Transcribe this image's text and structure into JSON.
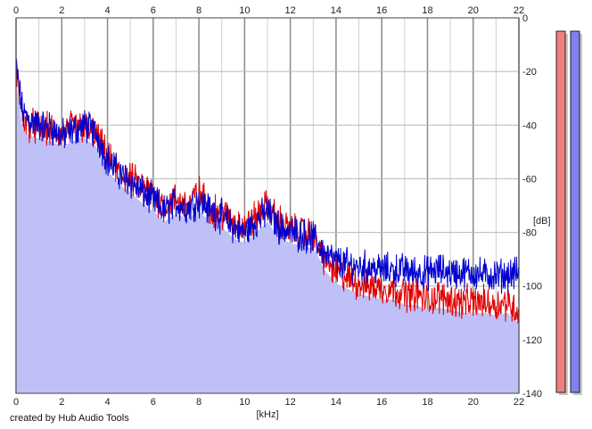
{
  "credit": "created by Hub Audio Tools",
  "chart_data": {
    "type": "area",
    "xlabel": "[kHz]",
    "ylabel": "[dB]",
    "xlim": [
      0,
      22
    ],
    "ylim": [
      -140,
      0
    ],
    "x_ticks": [
      0,
      2,
      4,
      6,
      8,
      10,
      12,
      14,
      16,
      18,
      20,
      22
    ],
    "y_ticks": [
      0,
      -20,
      -40,
      -60,
      -80,
      -100,
      -120,
      -140
    ],
    "grid": true,
    "area_fill": "#c0c0f8",
    "series": [
      {
        "color": "#e00000",
        "x": [
          0,
          0.3,
          0.6,
          1,
          1.5,
          2,
          2.5,
          3,
          3.5,
          4,
          4.5,
          5,
          5.5,
          6,
          6.5,
          7,
          7.5,
          8,
          8.5,
          9,
          9.5,
          10,
          10.5,
          11,
          11.5,
          12,
          12.5,
          13,
          13.5,
          14,
          14.5,
          15,
          15.5,
          16,
          16.5,
          17,
          17.5,
          18,
          18.5,
          19,
          19.5,
          20,
          20.5,
          21,
          21.5,
          22
        ],
        "y": [
          -20,
          -38,
          -40,
          -41,
          -42,
          -44,
          -40,
          -41,
          -44,
          -52,
          -58,
          -60,
          -63,
          -66,
          -70,
          -68,
          -70,
          -65,
          -71,
          -73,
          -76,
          -78,
          -74,
          -70,
          -76,
          -79,
          -80,
          -81,
          -90,
          -95,
          -97,
          -99,
          -100,
          -101,
          -101,
          -103,
          -103,
          -105,
          -104,
          -105,
          -106,
          -106,
          -106,
          -107,
          -106,
          -110
        ]
      },
      {
        "color": "#0000d0",
        "x": [
          0,
          0.3,
          0.6,
          1,
          1.5,
          2,
          2.5,
          3,
          3.5,
          4,
          4.5,
          5,
          5.5,
          6,
          6.5,
          7,
          7.5,
          8,
          8.5,
          9,
          9.5,
          10,
          10.5,
          11,
          11.5,
          12,
          12.5,
          13,
          13.5,
          14,
          14.5,
          15,
          15.5,
          16,
          16.5,
          17,
          17.5,
          18,
          18.5,
          19,
          19.5,
          20,
          20.5,
          21,
          21.5,
          22
        ],
        "y": [
          -18,
          -36,
          -38,
          -40,
          -41,
          -44,
          -42,
          -40,
          -43,
          -53,
          -58,
          -61,
          -65,
          -68,
          -72,
          -69,
          -71,
          -68,
          -72,
          -74,
          -78,
          -80,
          -76,
          -72,
          -78,
          -80,
          -81,
          -82,
          -88,
          -91,
          -92,
          -93,
          -93,
          -94,
          -94,
          -94,
          -95,
          -95,
          -94,
          -95,
          -95,
          -95,
          -96,
          -96,
          -96,
          -95
        ]
      }
    ],
    "level_meters": [
      {
        "channel": "left",
        "color": "#f08080",
        "level_db": 0
      },
      {
        "channel": "right",
        "color": "#8080f0",
        "level_db": 0
      }
    ]
  }
}
